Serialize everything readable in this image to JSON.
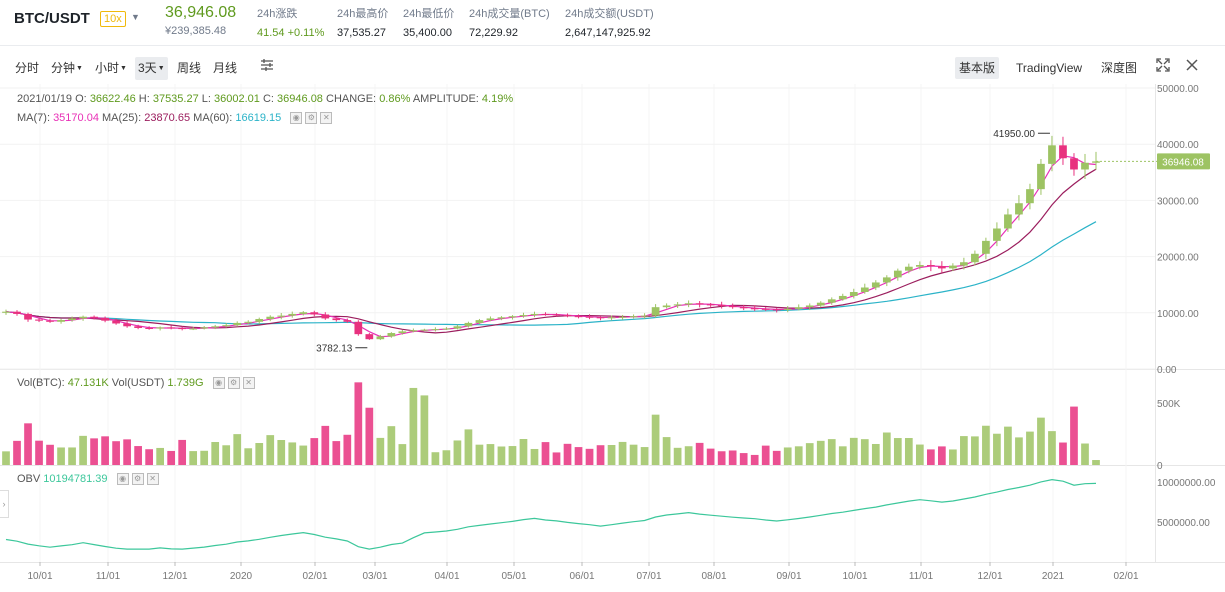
{
  "header": {
    "pair": "BTC/USDT",
    "leverage": "10x",
    "price": "36,946.08",
    "price_cny": "¥239,385.48",
    "stats": [
      {
        "label": "24h涨跌",
        "value": "41.54 +0.11%",
        "color": "#5f9a1e"
      },
      {
        "label": "24h最高价",
        "value": "37,535.27"
      },
      {
        "label": "24h最低价",
        "value": "35,400.00"
      },
      {
        "label": "24h成交量(BTC)",
        "value": "72,229.92"
      },
      {
        "label": "24h成交额(USDT)",
        "value": "2,647,147,925.92"
      }
    ]
  },
  "toolbar": {
    "intervals": [
      "分时",
      "分钟",
      "小时",
      "3天",
      "周线",
      "月线"
    ],
    "active_interval": "3天",
    "views": [
      "基本版",
      "TradingView",
      "深度图"
    ],
    "active_view": "基本版",
    "icons": [
      "indicator-icon",
      "fullscreen-icon",
      "close-icon"
    ]
  },
  "price_panel": {
    "date": "2021/01/19",
    "o_label": "O:",
    "o": "36622.46",
    "h_label": "H:",
    "h": "37535.27",
    "l_label": "L:",
    "l": "36002.01",
    "c_label": "C:",
    "c": "36946.08",
    "change_label": "CHANGE:",
    "change": "0.86%",
    "amp_label": "AMPLITUDE:",
    "amp": "4.19%",
    "ma7_label": "MA(7):",
    "ma7": "35170.04",
    "ma25_label": "MA(25):",
    "ma25": "23870.65",
    "ma60_label": "MA(60):",
    "ma60": "16619.15",
    "max_label": "41950.00",
    "min_label": "3782.13",
    "last_price_tag": "36946.08",
    "y_ticks": [
      "50000.00",
      "40000.00",
      "30000.00",
      "20000.00",
      "10000.00",
      "0.00"
    ]
  },
  "volume_panel": {
    "vol_btc_label": "Vol(BTC):",
    "vol_btc": "47.131K",
    "vol_usdt_label": "Vol(USDT)",
    "vol_usdt": "1.739G",
    "y_ticks": [
      "500K",
      "0"
    ]
  },
  "obv_panel": {
    "label": "OBV",
    "value": "10194781.39",
    "y_ticks": [
      "10000000.00",
      "5000000.00"
    ]
  },
  "x_ticks": [
    "10/01",
    "11/01",
    "12/01",
    "2020",
    "02/01",
    "03/01",
    "04/01",
    "05/01",
    "06/01",
    "07/01",
    "08/01",
    "09/01",
    "10/01",
    "11/01",
    "12/01",
    "2021",
    "02/01"
  ],
  "colors": {
    "up": "#9dc363",
    "down": "#e8317f",
    "ma7": "#e830b6",
    "ma25": "#9b1e5e",
    "ma60": "#2bb3c8",
    "obv": "#3cc79b"
  },
  "chart_data": {
    "type": "candlestick",
    "y_range": [
      0,
      50000
    ],
    "closes": [
      10200,
      9800,
      8800,
      8600,
      8400,
      8700,
      9000,
      9300,
      9100,
      8600,
      8100,
      7600,
      7300,
      7200,
      7400,
      7300,
      7100,
      7200,
      7400,
      7600,
      7800,
      8200,
      8400,
      8900,
      9300,
      9500,
      9800,
      10100,
      9700,
      9000,
      8700,
      8400,
      6200,
      5300,
      5800,
      6400,
      6700,
      6900,
      7000,
      7100,
      7200,
      7600,
      8200,
      8700,
      9000,
      9200,
      9400,
      9600,
      9800,
      9700,
      9600,
      9400,
      9300,
      9200,
      9100,
      9200,
      9300,
      9400,
      9500,
      11000,
      11300,
      11500,
      11700,
      11500,
      11400,
      11200,
      11000,
      10800,
      10700,
      10600,
      10500,
      10700,
      11000,
      11300,
      11800,
      12400,
      13000,
      13700,
      14500,
      15400,
      16300,
      17500,
      18200,
      18500,
      18300,
      17900,
      18400,
      19000,
      20500,
      22800,
      25000,
      27500,
      29500,
      32000,
      36500,
      39800,
      37500,
      35500,
      36700,
      36946
    ],
    "volume_max": 700000,
    "obv_range": [
      0,
      12000000
    ]
  }
}
